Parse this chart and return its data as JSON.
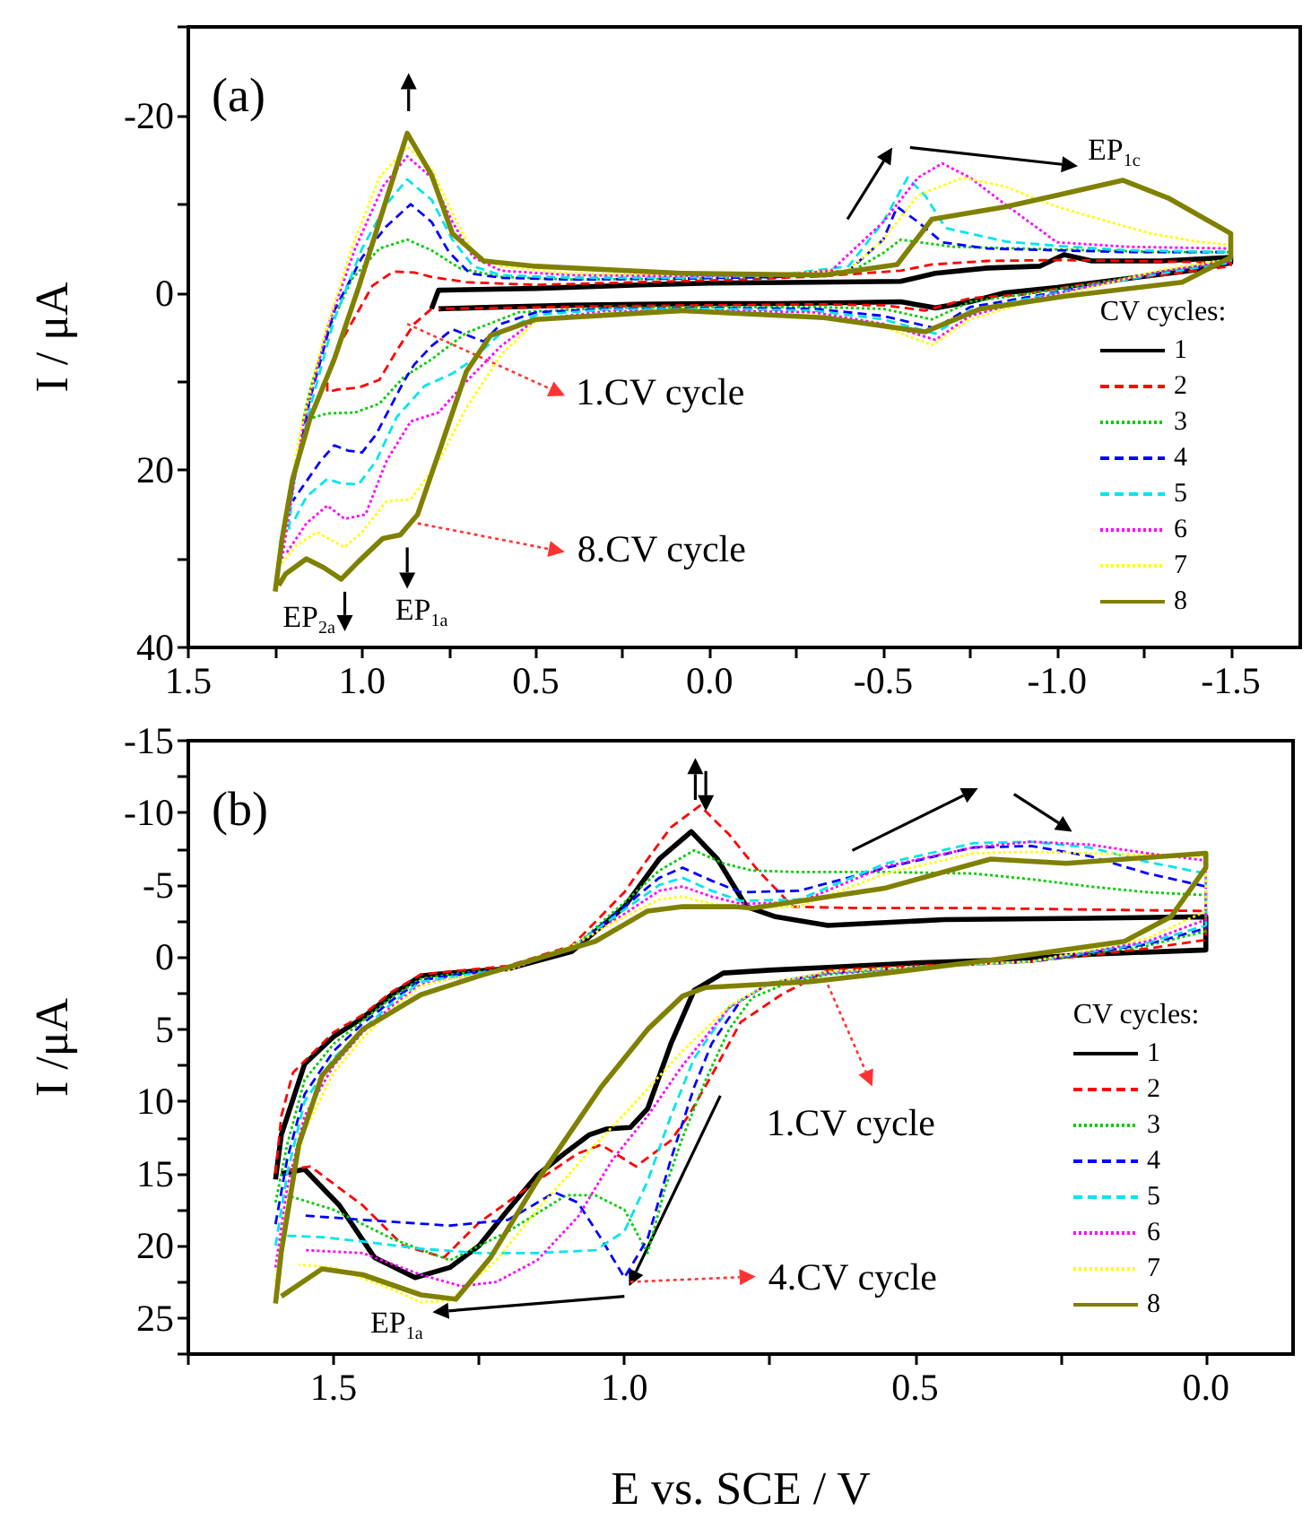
{
  "chart_data": [
    {
      "type": "line",
      "ylabel": "I / μA",
      "legend_title": "CV cycles:",
      "legend": "bottom right",
      "marker": "none",
      "xlim": [
        1.5,
        -1.7
      ],
      "ylim": [
        40,
        -30
      ],
      "xticks": [
        1.5,
        {
          "value": 1.25,
          "label": null
        },
        {
          "value": 1,
          "label": "1.0"
        },
        {
          "value": 0.75,
          "label": null
        },
        0.5,
        {
          "value": 0.25,
          "label": null
        },
        {
          "value": 0,
          "label": "0.0"
        },
        {
          "value": -0.25,
          "label": null
        },
        -0.5,
        {
          "value": -0.75,
          "label": null
        },
        {
          "value": -1,
          "label": "-1.0"
        },
        {
          "value": -1.25,
          "label": null
        },
        -1.5
      ],
      "yticks": [
        -20,
        {
          "value": -10,
          "label": null
        },
        0,
        {
          "value": 10,
          "label": null
        },
        20,
        {
          "value": 30,
          "label": null
        },
        40
      ],
      "annotations": [
        "(a)",
        {
          "text": "EP$_{2a}$",
          "x": 1.06,
          "y": 32.3
        },
        {
          "text": "EP$_{1a}$",
          "x": 0.87,
          "y": 27.3
        },
        {
          "text": "EP$_{1c}$",
          "x": -1.19,
          "y": -12.7
        },
        {
          "text": "1.CV cycle",
          "x": 0.87,
          "y": 3.5
        },
        {
          "text": "8.CV cycle",
          "x": 0.84,
          "y": 26
        }
      ],
      "series": [
        {
          "name": "1",
          "color": "#000000",
          "line_style": "solid",
          "x": [
            0.8,
            0.78,
            0.5,
            0.2,
            0,
            -0.3,
            -0.55,
            -0.65,
            -0.8,
            -0.95,
            -1.02,
            -1.1,
            -1.3,
            -1.5,
            -1.5,
            -1.4,
            -1.2,
            -1,
            -0.85,
            -0.75,
            -0.65,
            -0.55,
            -0.4,
            -0.2,
            0,
            0.2,
            0.4,
            0.6,
            0.78
          ],
          "values": [
            1.8,
            -0.3,
            -0.5,
            -0.9,
            -1.1,
            -1.2,
            -1.3,
            -2.2,
            -2.8,
            -3,
            -4.3,
            -3.6,
            -3.6,
            -4,
            -3.4,
            -2.6,
            -1.6,
            -0.6,
            0,
            1,
            1.7,
            1,
            1.1,
            1.2,
            1.2,
            1.3,
            1.4,
            1.6,
            1.8
          ]
        },
        {
          "name": "2",
          "color": "#ff0000",
          "line_style": "dashed",
          "x": [
            0.8,
            0.85,
            0.9,
            0.95,
            1.01,
            1.07,
            1.1,
            1.1,
            1.09,
            1.06,
            1.03,
            0.97,
            0.91,
            0.85,
            0.8,
            0.7,
            0.5,
            0.2,
            -0.1,
            -0.33,
            -0.55,
            -0.64,
            -0.8,
            -1,
            -1.2,
            -1.5,
            -1.5,
            -1.3,
            -1.05,
            -0.9,
            -0.75,
            -0.62,
            -0.5,
            -0.3,
            0,
            0.3,
            0.6,
            0.78
          ],
          "values": [
            1.8,
            3.5,
            6.5,
            9.8,
            10.7,
            10.9,
            11.2,
            10,
            8.1,
            5.5,
            3.4,
            -0.8,
            -2.4,
            -2.3,
            -1.8,
            -1.2,
            -0.9,
            -1.2,
            -1.5,
            -1.9,
            -2.5,
            -3.2,
            -3.6,
            -3.7,
            -3.6,
            -3.4,
            -3,
            -2,
            -0.8,
            0.2,
            0.6,
            2,
            1.4,
            1.3,
            1.4,
            1.5,
            1.7,
            1.8
          ]
        },
        {
          "name": "3",
          "color": "#00cc00",
          "line_style": "dotted",
          "x": [
            1.17,
            1.15,
            1.1,
            1.03,
            0.95,
            0.87,
            0.8,
            0.72,
            0.6,
            0.4,
            0.1,
            -0.2,
            -0.4,
            -0.5,
            -0.55,
            -0.7,
            -0.9,
            -1.1,
            -1.3,
            -1.5,
            -1.5,
            -1.3,
            -1.1,
            -0.9,
            -0.75,
            -0.64,
            -0.5,
            -0.3,
            0,
            0.3,
            0.55,
            0.7,
            0.8,
            0.88,
            0.95,
            1.02,
            1.1,
            1.16
          ],
          "values": [
            14.5,
            11,
            4.5,
            -1.5,
            -5,
            -6,
            -4.8,
            -2.8,
            -1.8,
            -1.5,
            -1.6,
            -1.8,
            -2.2,
            -4.5,
            -6,
            -5.2,
            -5,
            -4.8,
            -4.6,
            -4.6,
            -3.6,
            -2.4,
            -1,
            0.2,
            1,
            3,
            1.8,
            1.6,
            1.6,
            1.7,
            2.2,
            4.5,
            7.5,
            9.5,
            12.5,
            13.5,
            13.6,
            14.3
          ]
        },
        {
          "name": "4",
          "color": "#0000ff",
          "line_style": "dashed",
          "x": [
            1.21,
            1.19,
            1.15,
            1.08,
            1,
            0.93,
            0.86,
            0.8,
            0.75,
            0.69,
            0.6,
            0.4,
            0.1,
            -0.2,
            -0.4,
            -0.5,
            -0.54,
            -0.6,
            -0.67,
            -0.8,
            -1,
            -1.2,
            -1.5,
            -1.5,
            -1.3,
            -1.1,
            -0.9,
            -0.75,
            -0.65,
            -0.5,
            -0.3,
            0,
            0.3,
            0.5,
            0.6,
            0.65,
            0.74,
            0.8,
            0.85,
            0.88,
            0.92,
            0.96,
            1,
            1.04,
            1.08,
            1.12,
            1.2
          ],
          "values": [
            24.3,
            20,
            12,
            2,
            -4,
            -7.5,
            -10,
            -8,
            -4.6,
            -2.2,
            -1.7,
            -1.5,
            -1.6,
            -1.8,
            -2.5,
            -6,
            -9.7,
            -8,
            -5.7,
            -5,
            -4.8,
            -4.6,
            -4.6,
            -3.4,
            -2.2,
            -0.8,
            0.6,
            1.6,
            4,
            2.6,
            1.8,
            1.7,
            1.8,
            2.2,
            3.5,
            5.5,
            4.1,
            6,
            8.1,
            10,
            13,
            16,
            18,
            17.8,
            17.2,
            19,
            23.5
          ]
        },
        {
          "name": "5",
          "color": "#00e5ee",
          "line_style": "dashed",
          "x": [
            1.21,
            1.2,
            1.15,
            1.08,
            1,
            0.93,
            0.87,
            0.8,
            0.74,
            0.68,
            0.6,
            0.4,
            0.1,
            -0.2,
            -0.4,
            -0.5,
            -0.57,
            -0.62,
            -0.68,
            -0.85,
            -1,
            -1.2,
            -1.5,
            -1.5,
            -1.3,
            -1.1,
            -0.9,
            -0.75,
            -0.65,
            -0.5,
            -0.3,
            0,
            0.3,
            0.5,
            0.6,
            0.68,
            0.74,
            0.82,
            0.9,
            0.96,
            1.01,
            1.06,
            1.1,
            1.16,
            1.2
          ],
          "values": [
            26.7,
            22,
            13,
            3,
            -5,
            -10,
            -12.8,
            -10.5,
            -6,
            -3,
            -2,
            -1.7,
            -1.7,
            -2,
            -3,
            -8,
            -13,
            -11,
            -7.3,
            -5.8,
            -5.3,
            -4.8,
            -4.6,
            -3.4,
            -2.2,
            -0.8,
            0.8,
            2,
            4.6,
            3,
            2,
            1.8,
            1.9,
            2.5,
            4.5,
            7.5,
            9.1,
            10.5,
            14,
            19,
            21.6,
            21.5,
            21,
            23,
            26
          ]
        },
        {
          "name": "6",
          "color": "#ff00ff",
          "line_style": "dotted",
          "x": [
            1.23,
            1.21,
            1.17,
            1.1,
            1.02,
            0.94,
            0.87,
            0.8,
            0.74,
            0.68,
            0.6,
            0.4,
            0.1,
            -0.2,
            -0.35,
            -0.5,
            -0.6,
            -0.67,
            -0.75,
            -0.85,
            -1,
            -1.2,
            -1.5,
            -1.5,
            -1.3,
            -1.1,
            -0.9,
            -0.75,
            -0.65,
            -0.5,
            -0.3,
            0,
            0.3,
            0.5,
            0.6,
            0.7,
            0.78,
            0.86,
            0.93,
            0.99,
            1.05,
            1.1,
            1.16,
            1.22
          ],
          "values": [
            30,
            25,
            15,
            4,
            -5,
            -12,
            -15.4,
            -13,
            -8,
            -4,
            -2.5,
            -2,
            -1.9,
            -2,
            -2.5,
            -8,
            -13,
            -14.6,
            -13,
            -10,
            -5.7,
            -5.2,
            -5,
            -3.6,
            -2.4,
            -0.8,
            1,
            2.6,
            5.3,
            3.5,
            2.2,
            2,
            2.1,
            3,
            6,
            10,
            13.5,
            14.5,
            19,
            25,
            25.5,
            24,
            26,
            29.5
          ]
        },
        {
          "name": "7",
          "color": "#ffff00",
          "line_style": "dotted",
          "x": [
            1.24,
            1.22,
            1.18,
            1.11,
            1.03,
            0.95,
            0.87,
            0.8,
            0.74,
            0.68,
            0.6,
            0.4,
            0.1,
            -0.2,
            -0.4,
            -0.5,
            -0.6,
            -0.73,
            -0.85,
            -1,
            -1.15,
            -1.27,
            -1.4,
            -1.5,
            -1.5,
            -1.3,
            -1.1,
            -0.9,
            -0.75,
            -0.64,
            -0.5,
            -0.3,
            0,
            0.3,
            0.5,
            0.6,
            0.7,
            0.78,
            0.86,
            0.93,
            1,
            1.05,
            1.13,
            1.19,
            1.23
          ],
          "values": [
            31,
            26,
            16,
            5,
            -5,
            -13,
            -16.5,
            -14,
            -9,
            -4.5,
            -3,
            -2.2,
            -2,
            -2.1,
            -2.6,
            -6,
            -11,
            -13,
            -12,
            -9.7,
            -8,
            -6.7,
            -5.8,
            -5.4,
            -3.8,
            -2.6,
            -0.6,
            1.2,
            3,
            5.9,
            3.8,
            2.5,
            2.2,
            2.3,
            3.2,
            7,
            13,
            19,
            23.3,
            23.5,
            27,
            28.7,
            27,
            28.5,
            30.5
          ]
        },
        {
          "name": "8",
          "color": "#808000",
          "line_style": "solid",
          "x": [
            1.25,
            1.23,
            1.2,
            1.15,
            1.08,
            1.01,
            0.94,
            0.87,
            0.8,
            0.74,
            0.65,
            0.5,
            0.08,
            -0.33,
            -0.54,
            -0.64,
            -0.85,
            -1,
            -1.19,
            -1.32,
            -1.5,
            -1.5,
            -1.36,
            -1.02,
            -0.78,
            -0.62,
            -0.33,
            0.08,
            0.5,
            0.63,
            0.7,
            0.77,
            0.84,
            0.89,
            0.94,
            1.01,
            1.06,
            1.11,
            1.16,
            1.22,
            1.24
          ],
          "values": [
            33.7,
            27.7,
            21,
            14.2,
            7.5,
            -0.6,
            -9.3,
            -18,
            -13.3,
            -6.7,
            -3.6,
            -3,
            -2.2,
            -2,
            -3.2,
            -8.3,
            -9.7,
            -11,
            -12.7,
            -10.7,
            -6.7,
            -4,
            -1.2,
            0.4,
            1.8,
            4.4,
            2.8,
            2,
            3,
            4.8,
            8.9,
            17,
            25,
            27.3,
            27.7,
            30.3,
            32.3,
            31,
            30,
            31.7,
            33
          ]
        }
      ]
    },
    {
      "type": "line",
      "xlabel": "E vs. SCE / V",
      "ylabel": "I /μA",
      "legend_title": "CV cycles:",
      "legend": "bottom right",
      "marker": "none",
      "xlim": [
        1.75,
        -0.15
      ],
      "ylim": [
        27.5,
        -15
      ],
      "xticks": [
        {
          "value": 1.75,
          "label": null
        },
        1.5,
        {
          "value": 1.25,
          "label": null
        },
        {
          "value": 1,
          "label": "1.0"
        },
        {
          "value": 0.75,
          "label": null
        },
        0.5,
        {
          "value": 0.25,
          "label": null
        },
        {
          "value": 0,
          "label": "0.0"
        }
      ],
      "yticks": [
        -15,
        {
          "value": -12.5,
          "label": null
        },
        -10,
        {
          "value": -7.5,
          "label": null
        },
        -5,
        {
          "value": -2.5,
          "label": null
        },
        0,
        {
          "value": 2.5,
          "label": null
        },
        5,
        {
          "value": 7.5,
          "label": null
        },
        10,
        {
          "value": 12.5,
          "label": null
        },
        15,
        {
          "value": 17.5,
          "label": null
        },
        20,
        {
          "value": 22.5,
          "label": null
        },
        25
      ],
      "annotations": [
        "(b)",
        {
          "text": "EP$_{1a}$",
          "x": 1.29,
          "y": 23.7
        },
        {
          "text": "1.CV cycle",
          "x": 0.66,
          "y": 1
        },
        {
          "text": "4.CV cycle",
          "x": 0.99,
          "y": 22.5
        }
      ],
      "series": [
        {
          "name": "1",
          "color": "#000000",
          "line_style": "solid",
          "x": [
            1.6,
            1.59,
            1.55,
            1.5,
            1.45,
            1.4,
            1.35,
            1.3,
            1.2,
            1.09,
            1,
            0.94,
            0.885,
            0.84,
            0.79,
            0.74,
            0.65,
            0.45,
            0.2,
            0,
            0,
            0.2,
            0.35,
            0.5,
            0.65,
            0.75,
            0.83,
            0.88,
            0.92,
            0.96,
            0.99,
            1.03,
            1.06,
            1.1,
            1.15,
            1.2,
            1.25,
            1.3,
            1.36,
            1.43,
            1.49,
            1.55,
            1.59
          ],
          "values": [
            15.4,
            12.3,
            7.4,
            5.5,
            4.2,
            2.6,
            1.3,
            1.1,
            0.8,
            -0.4,
            -3.5,
            -6.8,
            -8.7,
            -6.8,
            -3.5,
            -2.8,
            -2.2,
            -2.6,
            -2.7,
            -2.8,
            -0.5,
            -0.2,
            0.2,
            0.4,
            0.7,
            0.9,
            1.1,
            2.3,
            6,
            10.5,
            11.8,
            11.9,
            12.3,
            13.5,
            15.1,
            17.5,
            20,
            21.5,
            22.2,
            20.8,
            17.2,
            14.7,
            15
          ]
        },
        {
          "name": "2",
          "color": "#ff0000",
          "line_style": "dashed",
          "x": [
            1.6,
            1.59,
            1.57,
            1.5,
            1.45,
            1.4,
            1.35,
            1.3,
            1.2,
            1.09,
            1,
            0.96,
            0.92,
            0.87,
            0.82,
            0.77,
            0.71,
            0.6,
            0.4,
            0.2,
            0,
            0,
            0.1,
            0.3,
            0.5,
            0.65,
            0.73,
            0.8,
            0.85,
            0.89,
            0.92,
            0.98,
            1.04,
            1.08,
            1.15,
            1.25,
            1.31,
            1.38,
            1.45,
            1.54,
            1.59
          ],
          "values": [
            15,
            11,
            8,
            5.2,
            4,
            2.4,
            1.2,
            1,
            0.6,
            -0.8,
            -4.5,
            -6.8,
            -9,
            -10.5,
            -8.5,
            -6,
            -3.5,
            -3.4,
            -3.4,
            -3.3,
            -3.2,
            -1.2,
            -0.6,
            0.3,
            0.6,
            0.9,
            2.6,
            4.5,
            8.2,
            11,
            12.7,
            14.5,
            13,
            13.6,
            15.5,
            18.4,
            20.8,
            20,
            17.2,
            14.5,
            14.8
          ]
        },
        {
          "name": "3",
          "color": "#00cc00",
          "line_style": "dotted",
          "x": [
            1.6,
            1.58,
            1.55,
            1.5,
            1.45,
            1.4,
            1.35,
            1.3,
            1.2,
            1.09,
            1,
            0.94,
            0.88,
            0.83,
            0.78,
            0.7,
            0.55,
            0.4,
            0.3,
            0.2,
            0.1,
            0,
            0,
            0.1,
            0.3,
            0.5,
            0.65,
            0.72,
            0.78,
            0.82,
            0.86,
            0.9,
            0.93,
            0.96,
            1,
            1.05,
            1.1,
            1.2,
            1.3,
            1.4,
            1.5,
            1.58
          ],
          "values": [
            17,
            13,
            8.5,
            6,
            4.4,
            2.8,
            1.5,
            1.2,
            0.8,
            -0.6,
            -3.8,
            -6,
            -7.4,
            -6.5,
            -6,
            -5.9,
            -5.9,
            -5.8,
            -5.4,
            -4.9,
            -4.5,
            -4.3,
            -1.8,
            -0.8,
            0.3,
            0.7,
            1.2,
            1.8,
            2.8,
            5,
            8.5,
            12.5,
            16,
            20.5,
            17.5,
            16.5,
            16.5,
            19,
            21,
            19.5,
            17.5,
            16.5
          ]
        },
        {
          "name": "4",
          "color": "#0000ff",
          "line_style": "dashed",
          "x": [
            1.6,
            1.58,
            1.55,
            1.5,
            1.45,
            1.4,
            1.35,
            1.3,
            1.2,
            1.09,
            1,
            0.94,
            0.9,
            0.85,
            0.8,
            0.7,
            0.55,
            0.4,
            0.3,
            0.2,
            0.1,
            0,
            0,
            0.1,
            0.3,
            0.5,
            0.65,
            0.75,
            0.8,
            0.85,
            0.88,
            0.92,
            0.96,
            1,
            1.04,
            1.08,
            1.12,
            1.2,
            1.3,
            1.45,
            1.55
          ],
          "values": [
            18.5,
            14,
            9.5,
            6.5,
            4.6,
            3,
            1.6,
            1.3,
            0.8,
            -0.6,
            -3.5,
            -5.5,
            -6.2,
            -5.3,
            -4.5,
            -4.6,
            -6.2,
            -7.6,
            -7.7,
            -7,
            -5.8,
            -4.9,
            -2,
            -0.9,
            0.3,
            0.7,
            1.1,
            1.8,
            3,
            6,
            9,
            14,
            19.5,
            22.2,
            19.5,
            17,
            16.3,
            18.2,
            18.6,
            18.2,
            17.9
          ]
        },
        {
          "name": "5",
          "color": "#00e5ee",
          "line_style": "dashed",
          "x": [
            1.6,
            1.58,
            1.55,
            1.5,
            1.45,
            1.4,
            1.35,
            1.3,
            1.2,
            1.09,
            1,
            0.94,
            0.9,
            0.85,
            0.8,
            0.7,
            0.55,
            0.4,
            0.3,
            0.2,
            0.1,
            0,
            0,
            0.1,
            0.3,
            0.5,
            0.65,
            0.75,
            0.82,
            0.88,
            0.92,
            0.96,
            1,
            1.05,
            1.15,
            1.25,
            1.35,
            1.45,
            1.52,
            1.58
          ],
          "values": [
            20,
            15,
            10,
            7,
            5,
            3.2,
            1.7,
            1.4,
            0.8,
            -0.7,
            -3.3,
            -5,
            -5.5,
            -4.6,
            -3.9,
            -4,
            -6.5,
            -7.9,
            -8,
            -7.6,
            -6.6,
            -5.8,
            -2.2,
            -1,
            0.3,
            0.7,
            1.1,
            1.8,
            3.5,
            7,
            11,
            15.5,
            19,
            20.3,
            20.5,
            20.5,
            20.2,
            19.7,
            19.4,
            19.3
          ]
        },
        {
          "name": "6",
          "color": "#ff00ff",
          "line_style": "dotted",
          "x": [
            1.6,
            1.58,
            1.55,
            1.5,
            1.45,
            1.4,
            1.35,
            1.3,
            1.2,
            1.09,
            1,
            0.94,
            0.9,
            0.85,
            0.8,
            0.7,
            0.55,
            0.4,
            0.3,
            0.2,
            0.1,
            0,
            0,
            0.1,
            0.3,
            0.5,
            0.65,
            0.75,
            0.82,
            0.9,
            0.96,
            1.02,
            1.08,
            1.15,
            1.22,
            1.28,
            1.35,
            1.45,
            1.55
          ],
          "values": [
            21.5,
            16,
            11,
            7.5,
            5.2,
            3.4,
            1.9,
            1.5,
            0.9,
            -0.7,
            -3,
            -4.6,
            -4.9,
            -4.2,
            -3.7,
            -3.8,
            -6.3,
            -7.6,
            -8,
            -7.8,
            -7.2,
            -6.7,
            -2.6,
            -1.1,
            0.3,
            0.7,
            1.1,
            1.8,
            3.5,
            7.5,
            11,
            14,
            18,
            21,
            22.5,
            22.8,
            22,
            20.5,
            20.3
          ]
        },
        {
          "name": "7",
          "color": "#ffff00",
          "line_style": "dotted",
          "x": [
            1.6,
            1.58,
            1.55,
            1.5,
            1.45,
            1.4,
            1.35,
            1.3,
            1.2,
            1.09,
            1,
            0.94,
            0.9,
            0.85,
            0.8,
            0.7,
            0.55,
            0.4,
            0.3,
            0.2,
            0.1,
            0,
            0,
            0.1,
            0.3,
            0.5,
            0.65,
            0.75,
            0.82,
            0.9,
            0.98,
            1.05,
            1.15,
            1.22,
            1.3,
            1.35,
            1.4,
            1.5,
            1.56
          ],
          "values": [
            22.5,
            17,
            12,
            8,
            5.6,
            3.6,
            2,
            1.5,
            0.9,
            -0.8,
            -2.8,
            -4,
            -4.2,
            -3.7,
            -3.4,
            -3.5,
            -5.8,
            -7.2,
            -7.3,
            -7.2,
            -7.1,
            -7,
            -3.2,
            -1.3,
            0.3,
            0.7,
            1,
            1.8,
            3.4,
            6.5,
            10,
            13,
            17.5,
            21,
            23.8,
            23.9,
            23,
            21.5,
            21.3
          ]
        },
        {
          "name": "8",
          "color": "#808000",
          "line_style": "solid",
          "x": [
            1.6,
            1.59,
            1.56,
            1.52,
            1.45,
            1.35,
            1.25,
            1.15,
            1.05,
            0.96,
            0.9,
            0.81,
            0.78,
            0.55,
            0.37,
            0.24,
            0,
            0,
            0.06,
            0.14,
            0.35,
            0.55,
            0.68,
            0.86,
            0.9,
            0.96,
            1.04,
            1.15,
            1.23,
            1.29,
            1.35,
            1.45,
            1.52,
            1.59
          ],
          "values": [
            24,
            20.4,
            13,
            8.2,
            5,
            2.6,
            1.3,
            0.1,
            -1.1,
            -3.2,
            -3.5,
            -3.5,
            -3.4,
            -4.8,
            -6.8,
            -6.5,
            -7.2,
            -6.2,
            -2.8,
            -1.1,
            0.1,
            1.1,
            1.7,
            2.1,
            2.7,
            5,
            9,
            15.5,
            20.8,
            23.7,
            23.4,
            22,
            21.6,
            23.5
          ]
        }
      ]
    }
  ]
}
